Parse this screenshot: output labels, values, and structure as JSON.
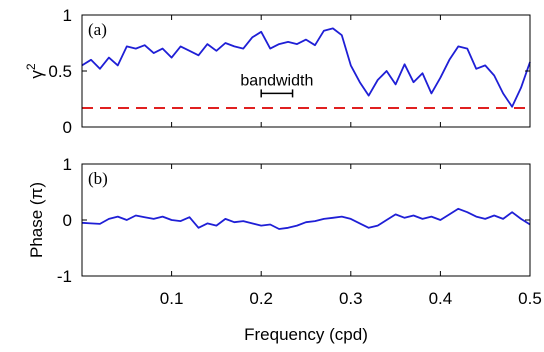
{
  "chart_data": [
    {
      "type": "line",
      "panel_label": "(a)",
      "ylabel": "γ",
      "ylabel_superscript": "2",
      "xlabel": "",
      "xlim": [
        0.0,
        0.5
      ],
      "ylim": [
        0,
        1
      ],
      "xticks": [
        0.1,
        0.2,
        0.3,
        0.4,
        0.5
      ],
      "xtick_labels": [
        "",
        "",
        "",
        "",
        ""
      ],
      "yticks": [
        0,
        0.5,
        1
      ],
      "ytick_labels": [
        "0",
        "0.5",
        "1"
      ],
      "grid": false,
      "annotation": {
        "text": "bandwidth",
        "x_start": 0.2,
        "x_end": 0.235,
        "y": 0.3
      },
      "series": [
        {
          "color": "#1f1fd6",
          "style": "solid",
          "x": [
            0.0,
            0.01,
            0.02,
            0.03,
            0.04,
            0.05,
            0.06,
            0.07,
            0.08,
            0.09,
            0.1,
            0.11,
            0.12,
            0.13,
            0.14,
            0.15,
            0.16,
            0.17,
            0.18,
            0.19,
            0.2,
            0.21,
            0.22,
            0.23,
            0.24,
            0.25,
            0.26,
            0.27,
            0.28,
            0.29,
            0.3,
            0.31,
            0.32,
            0.33,
            0.34,
            0.35,
            0.36,
            0.37,
            0.38,
            0.39,
            0.4,
            0.41,
            0.42,
            0.43,
            0.44,
            0.45,
            0.46,
            0.47,
            0.48,
            0.49,
            0.5
          ],
          "y": [
            0.55,
            0.6,
            0.52,
            0.62,
            0.55,
            0.72,
            0.7,
            0.73,
            0.66,
            0.7,
            0.62,
            0.72,
            0.68,
            0.64,
            0.74,
            0.68,
            0.75,
            0.72,
            0.7,
            0.8,
            0.85,
            0.7,
            0.74,
            0.76,
            0.74,
            0.78,
            0.73,
            0.86,
            0.88,
            0.82,
            0.55,
            0.4,
            0.28,
            0.42,
            0.5,
            0.38,
            0.56,
            0.4,
            0.48,
            0.3,
            0.44,
            0.6,
            0.72,
            0.7,
            0.52,
            0.55,
            0.46,
            0.3,
            0.18,
            0.35,
            0.58
          ]
        },
        {
          "color": "#e02020",
          "style": "dashed",
          "x": [
            0.0,
            0.5
          ],
          "y": [
            0.17,
            0.17
          ]
        }
      ]
    },
    {
      "type": "line",
      "panel_label": "(b)",
      "ylabel": "Phase (π)",
      "xlabel": "Frequency (cpd)",
      "xlim": [
        0.0,
        0.5
      ],
      "ylim": [
        -1,
        1
      ],
      "xticks": [
        0.1,
        0.2,
        0.3,
        0.4,
        0.5
      ],
      "xtick_labels": [
        "0.1",
        "0.2",
        "0.3",
        "0.4",
        "0.5"
      ],
      "yticks": [
        -1,
        0,
        1
      ],
      "ytick_labels": [
        "-1",
        "0",
        "1"
      ],
      "grid": false,
      "series": [
        {
          "color": "#1f1fd6",
          "style": "solid",
          "x": [
            0.0,
            0.01,
            0.02,
            0.03,
            0.04,
            0.05,
            0.06,
            0.07,
            0.08,
            0.09,
            0.1,
            0.11,
            0.12,
            0.13,
            0.14,
            0.15,
            0.16,
            0.17,
            0.18,
            0.19,
            0.2,
            0.21,
            0.22,
            0.23,
            0.24,
            0.25,
            0.26,
            0.27,
            0.28,
            0.29,
            0.3,
            0.31,
            0.32,
            0.33,
            0.34,
            0.35,
            0.36,
            0.37,
            0.38,
            0.39,
            0.4,
            0.41,
            0.42,
            0.43,
            0.44,
            0.45,
            0.46,
            0.47,
            0.48,
            0.49,
            0.5
          ],
          "y": [
            -0.05,
            -0.06,
            -0.07,
            0.02,
            0.06,
            0.0,
            0.08,
            0.05,
            0.02,
            0.06,
            0.0,
            -0.02,
            0.05,
            -0.14,
            -0.06,
            -0.1,
            0.02,
            -0.04,
            -0.02,
            -0.06,
            -0.1,
            -0.08,
            -0.16,
            -0.14,
            -0.1,
            -0.04,
            -0.02,
            0.02,
            0.04,
            0.06,
            0.02,
            -0.06,
            -0.14,
            -0.1,
            0.0,
            0.1,
            0.04,
            0.08,
            0.02,
            0.06,
            0.0,
            0.1,
            0.2,
            0.14,
            0.06,
            0.02,
            0.08,
            0.02,
            0.14,
            0.02,
            -0.08
          ]
        }
      ]
    }
  ]
}
